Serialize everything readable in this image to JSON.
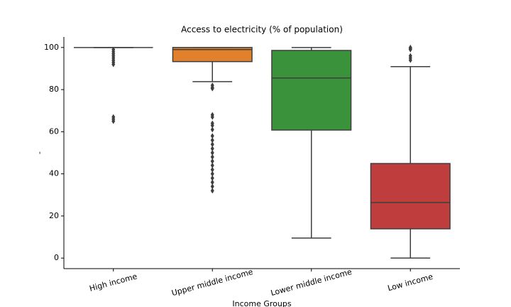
{
  "chart_data": {
    "type": "box",
    "title": "Access to electricity (% of population)",
    "xlabel": "Income Groups",
    "ylabel": "-",
    "categories": [
      "High income",
      "Upper middle income",
      "Lower middle income",
      "Low income"
    ],
    "colors": [
      "#3274a1",
      "#e1812c",
      "#3a923a",
      "#c03d3e"
    ],
    "boxes": [
      {
        "whislo": 100,
        "q1": 100,
        "med": 100,
        "q3": 100,
        "whishi": 100,
        "fliers": [
          99,
          98,
          97,
          96,
          95,
          94,
          93,
          92,
          67,
          66,
          65
        ]
      },
      {
        "whislo": 83.8,
        "q1": 93.3,
        "med": 99,
        "q3": 100,
        "whishi": 100,
        "fliers": [
          82,
          81,
          80.5,
          68,
          67,
          64,
          63,
          61,
          58,
          56,
          54,
          52,
          50,
          48,
          46,
          44,
          42,
          40,
          38,
          36,
          34,
          32
        ]
      },
      {
        "whislo": 9.5,
        "q1": 60.8,
        "med": 85.5,
        "q3": 98.6,
        "whishi": 100,
        "fliers": []
      },
      {
        "whislo": 0,
        "q1": 13.9,
        "med": 26.4,
        "q3": 44.9,
        "whishi": 90.9,
        "fliers": [
          100,
          99.5,
          99,
          96,
          95,
          94
        ]
      }
    ],
    "ylim": [
      -5,
      105
    ],
    "yticks": [
      0,
      20,
      40,
      60,
      80,
      100
    ]
  }
}
